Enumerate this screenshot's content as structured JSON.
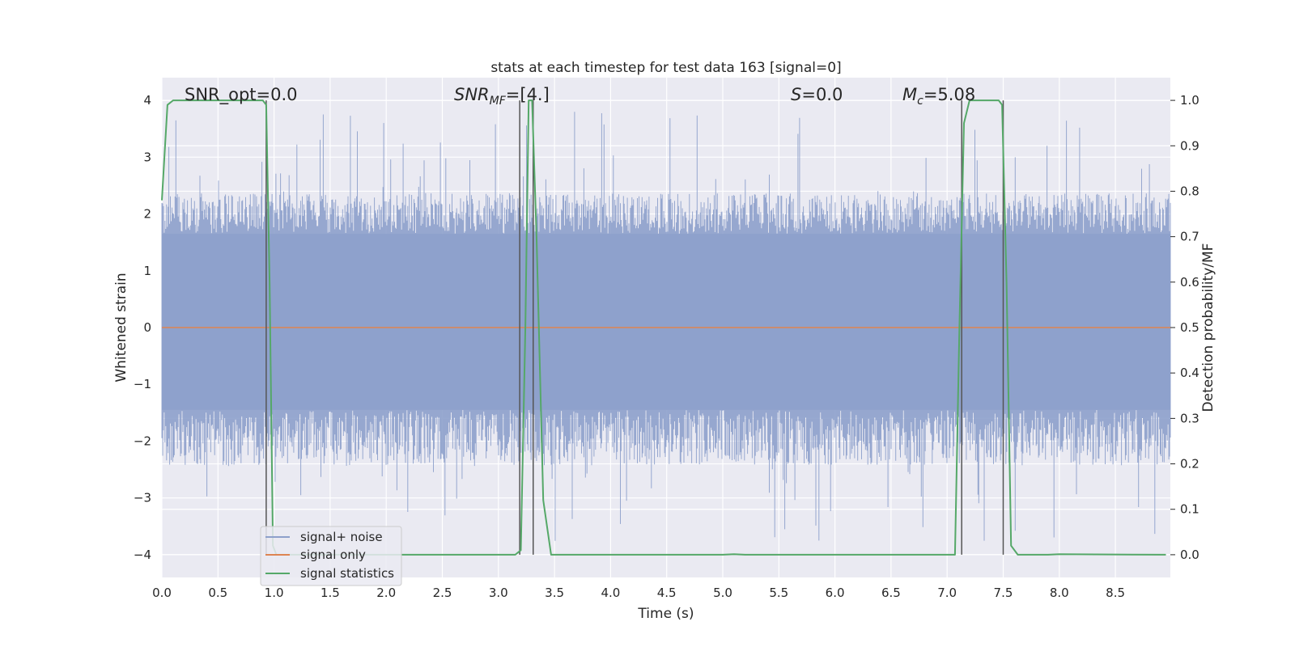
{
  "chart_data": {
    "type": "line",
    "title": "stats at each timestep for test data 163 [signal=0]",
    "xlabel": "Time (s)",
    "ylabel_left": "Whitened strain",
    "ylabel_right": "Detection probability/MF",
    "xlim": [
      0.0,
      8.99
    ],
    "ylim_left": [
      -4.4,
      4.4
    ],
    "ylim_right": [
      -0.05,
      1.05
    ],
    "x_ticks": [
      "0.0",
      "0.5",
      "1.0",
      "1.5",
      "2.0",
      "2.5",
      "3.0",
      "3.5",
      "4.0",
      "4.5",
      "5.0",
      "5.5",
      "6.0",
      "6.5",
      "7.0",
      "7.5",
      "8.0",
      "8.5"
    ],
    "y_ticks_left": [
      "4",
      "3",
      "2",
      "1",
      "0",
      "−1",
      "−2",
      "−3",
      "−4"
    ],
    "y_ticks_right": [
      "1.0",
      "0.9",
      "0.8",
      "0.7",
      "0.6",
      "0.5",
      "0.4",
      "0.3",
      "0.2",
      "0.1",
      "0.0"
    ],
    "grid": true,
    "legend_position": "lower-left",
    "annotations": {
      "snr_opt": "SNR_opt=0.0",
      "snr_mf_base": "SNR",
      "snr_mf_sub": "MF",
      "snr_mf_value": "=[4.]",
      "s_var": "S",
      "s_value": "=0.0",
      "mc_base": "M",
      "mc_sub": "c",
      "mc_value": "=5.08"
    },
    "series": [
      {
        "name": "signal+ noise",
        "color": "#8da0cb",
        "envelope": {
          "typical_upper": 2.2,
          "typical_lower": -2.2,
          "band_upper": 1.65,
          "band_lower": -1.45,
          "max_peak": 3.8,
          "min_peak": -3.8
        }
      },
      {
        "name": "signal only",
        "color": "#dd8452",
        "x": [
          0.0,
          8.99
        ],
        "y": [
          0.0,
          0.0
        ]
      },
      {
        "name": "signal statistics",
        "color": "#55a868",
        "axis": "right",
        "x": [
          0.0,
          0.05,
          0.1,
          0.15,
          0.9,
          0.93,
          0.96,
          0.99,
          1.02,
          1.05,
          1.1,
          3.15,
          3.2,
          3.24,
          3.27,
          3.3,
          3.34,
          3.4,
          3.47,
          5.0,
          5.1,
          5.2,
          7.07,
          7.11,
          7.15,
          7.2,
          7.46,
          7.49,
          7.53,
          7.57,
          7.63,
          7.9,
          8.0,
          8.95
        ],
        "y": [
          0.78,
          0.99,
          1.0,
          1.0,
          1.0,
          0.99,
          0.6,
          0.02,
          0.0,
          0.0,
          0.0,
          0.0,
          0.01,
          0.5,
          1.0,
          1.0,
          0.7,
          0.12,
          0.0,
          0.0,
          0.001,
          0.0,
          0.0,
          0.5,
          0.95,
          1.0,
          1.0,
          0.99,
          0.6,
          0.02,
          0.0,
          0.0,
          0.001,
          0.0
        ]
      }
    ],
    "vertical_markers_x": [
      0.93,
      3.19,
      3.31,
      7.13,
      7.5
    ]
  }
}
